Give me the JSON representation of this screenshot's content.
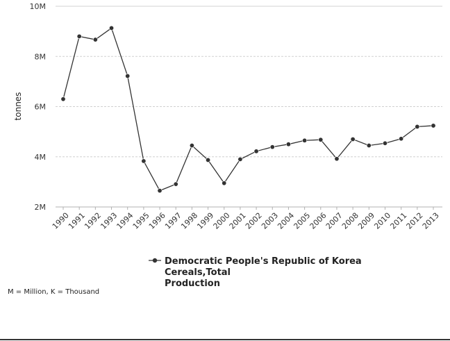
{
  "chart_data": {
    "type": "line",
    "ylabel": "tonnes",
    "ylim": [
      2000000,
      10000000
    ],
    "y_ticks": [
      {
        "value": 2000000,
        "label": "2M"
      },
      {
        "value": 4000000,
        "label": "4M"
      },
      {
        "value": 6000000,
        "label": "6M"
      },
      {
        "value": 8000000,
        "label": "8M"
      },
      {
        "value": 10000000,
        "label": "10M"
      }
    ],
    "categories": [
      "1990",
      "1991",
      "1992",
      "1993",
      "1994",
      "1995",
      "1996",
      "1997",
      "1998",
      "1999",
      "2000",
      "2001",
      "2002",
      "2003",
      "2004",
      "2005",
      "2006",
      "2007",
      "2008",
      "2009",
      "2010",
      "2011",
      "2012",
      "2013"
    ],
    "series": [
      {
        "name_lines": [
          "Democratic People's Republic of Korea",
          "Cereals,Total",
          "Production"
        ],
        "values": [
          6300000,
          8800000,
          8670000,
          9130000,
          7220000,
          3830000,
          2650000,
          2910000,
          4450000,
          3870000,
          2950000,
          3900000,
          4220000,
          4390000,
          4500000,
          4650000,
          4680000,
          3920000,
          4700000,
          4450000,
          4540000,
          4720000,
          5200000,
          5240000
        ],
        "color": "#333333"
      }
    ],
    "grid": true,
    "legend_position": "bottom-center",
    "footnote": "M = Million, K = Thousand"
  }
}
